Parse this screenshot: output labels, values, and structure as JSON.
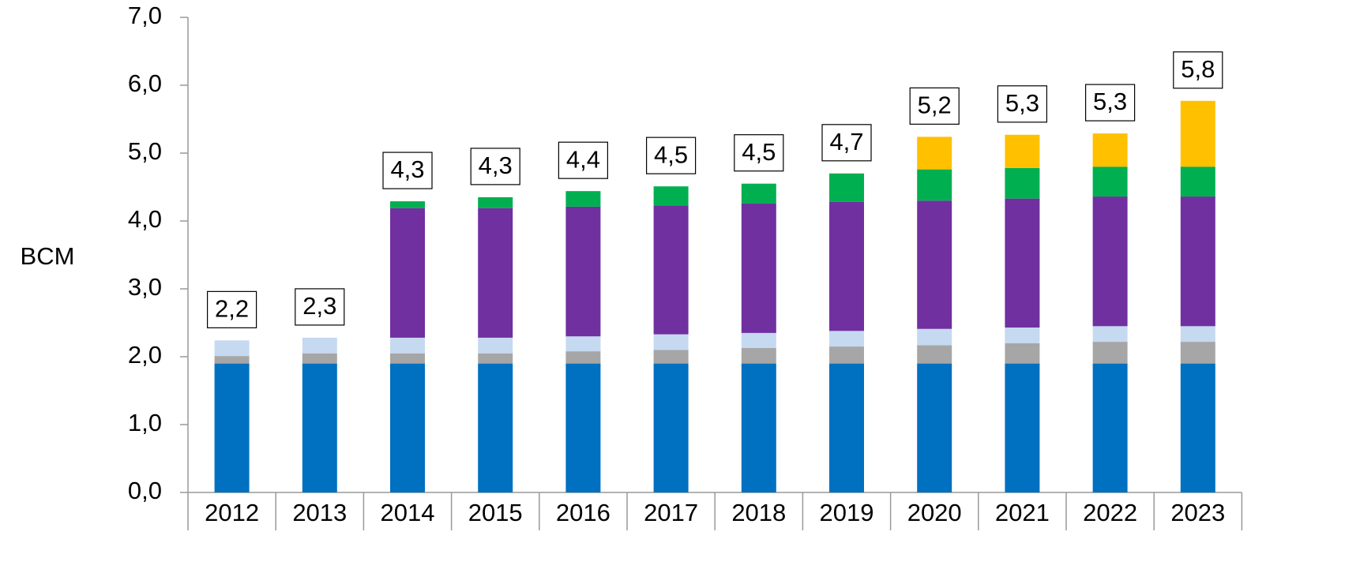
{
  "chart_data": {
    "type": "stacked_bar",
    "y_label": "BCM",
    "categories": [
      "2012",
      "2013",
      "2014",
      "2015",
      "2016",
      "2017",
      "2018",
      "2019",
      "2020",
      "2021",
      "2022",
      "2023"
    ],
    "series": [
      {
        "color": "#0070c0",
        "values": [
          1.9,
          1.9,
          1.9,
          1.9,
          1.9,
          1.9,
          1.9,
          1.9,
          1.9,
          1.9,
          1.9,
          1.9
        ]
      },
      {
        "color": "#a6a6a6",
        "values": [
          0.11,
          0.15,
          0.15,
          0.15,
          0.18,
          0.2,
          0.23,
          0.25,
          0.27,
          0.3,
          0.32,
          0.32
        ]
      },
      {
        "color": "#c5d9f1",
        "values": [
          0.23,
          0.23,
          0.23,
          0.23,
          0.22,
          0.23,
          0.22,
          0.23,
          0.24,
          0.23,
          0.23,
          0.23
        ]
      },
      {
        "color": "#7030a0",
        "values": [
          0,
          0,
          1.91,
          1.91,
          1.91,
          1.9,
          1.91,
          1.9,
          1.89,
          1.9,
          1.91,
          1.91
        ]
      },
      {
        "color": "#00b050",
        "values": [
          0,
          0,
          0.1,
          0.16,
          0.23,
          0.28,
          0.29,
          0.42,
          0.46,
          0.45,
          0.44,
          0.44
        ]
      },
      {
        "color": "#ffc000",
        "values": [
          0,
          0,
          0,
          0,
          0,
          0,
          0,
          0,
          0.48,
          0.49,
          0.49,
          0.97
        ]
      }
    ],
    "totals": {
      "values": [
        2.2,
        2.3,
        4.3,
        4.3,
        4.4,
        4.5,
        4.5,
        4.7,
        5.2,
        5.3,
        5.3,
        5.8
      ],
      "value_labels": [
        "2,2",
        "2,3",
        "4,3",
        "4,3",
        "4,4",
        "4,5",
        "4,5",
        "4,7",
        "5,2",
        "5,3",
        "5,3",
        "5,8"
      ]
    },
    "ylim": [
      0,
      7
    ],
    "yticks": [
      {
        "value": 0,
        "label": "0,0"
      },
      {
        "value": 1,
        "label": "1,0"
      },
      {
        "value": 2,
        "label": "2,0"
      },
      {
        "value": 3,
        "label": "3,0"
      },
      {
        "value": 4,
        "label": "4,0"
      },
      {
        "value": 5,
        "label": "5,0"
      },
      {
        "value": 6,
        "label": "6,0"
      },
      {
        "value": 7,
        "label": "7,0"
      }
    ],
    "grid": false
  }
}
